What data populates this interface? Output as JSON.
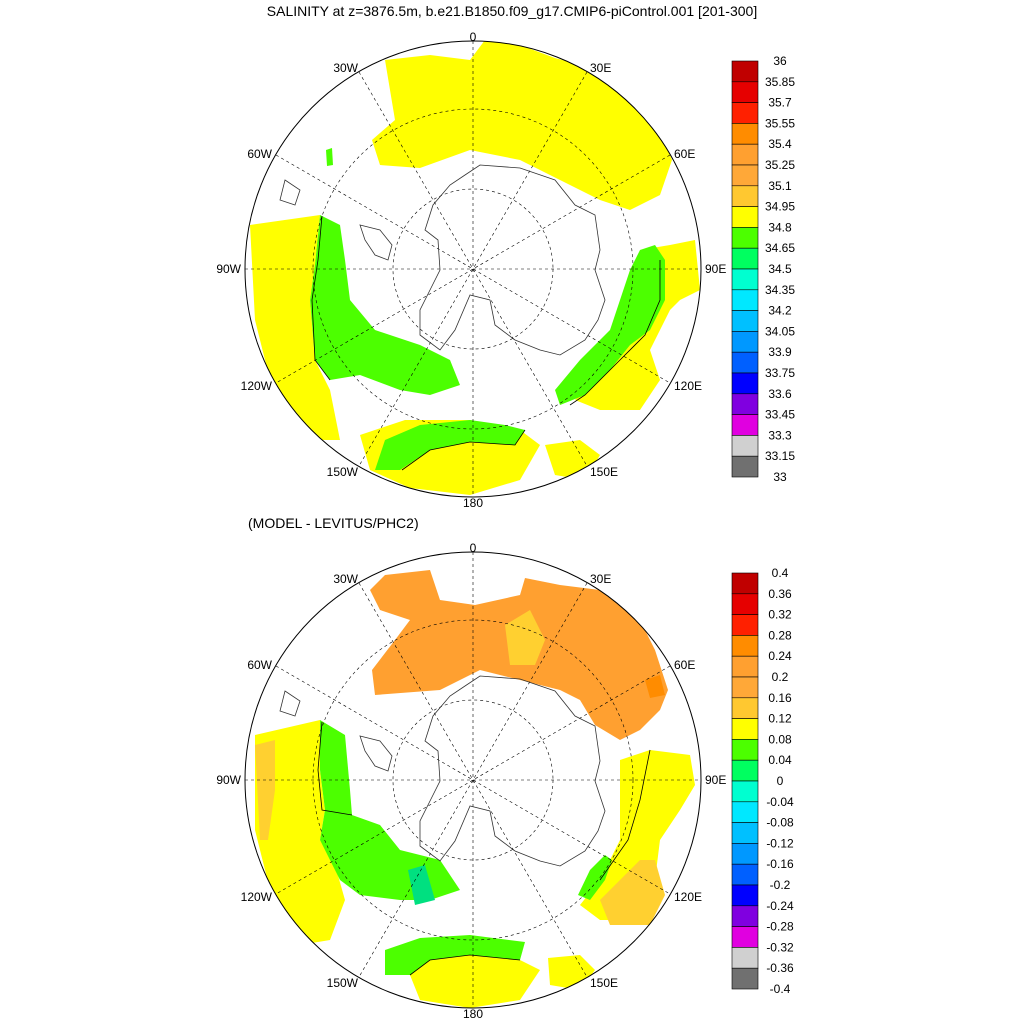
{
  "title": "SALINITY at z=3876.5m, b.e21.B1850.f09_g17.CMIP6-piControl.001 [201-300]",
  "subtitle": "(MODEL - LEVITUS/PHC2)",
  "map_labels": {
    "top": "0",
    "bottom": "180",
    "w30": "30W",
    "e30": "30E",
    "w60": "60W",
    "e60": "60E",
    "w90": "90W",
    "e90": "90E",
    "w120": "120W",
    "e120": "120E",
    "w150": "150W",
    "e150": "150E"
  },
  "colorbar1": {
    "labels": [
      "36",
      "35.85",
      "35.7",
      "35.55",
      "35.4",
      "35.25",
      "35.1",
      "34.95",
      "34.8",
      "34.65",
      "34.5",
      "34.35",
      "34.2",
      "34.05",
      "33.9",
      "33.75",
      "33.6",
      "33.45",
      "33.3",
      "33.15",
      "33"
    ],
    "colors": [
      "#c00000",
      "#e60000",
      "#ff2000",
      "#ff8c00",
      "#ffa030",
      "#ffa838",
      "#ffc830",
      "#ffff00",
      "#4cff00",
      "#00ff60",
      "#00ffd0",
      "#00e8ff",
      "#00c0ff",
      "#0098ff",
      "#0060ff",
      "#0000ff",
      "#8000e0",
      "#e000e0",
      "#d0d0d0",
      "#707070"
    ]
  },
  "colorbar2": {
    "labels": [
      "0.4",
      "0.36",
      "0.32",
      "0.28",
      "0.24",
      "0.2",
      "0.16",
      "0.12",
      "0.08",
      "0.04",
      "0",
      "-0.04",
      "-0.08",
      "-0.12",
      "-0.16",
      "-0.2",
      "-0.24",
      "-0.28",
      "-0.32",
      "-0.36",
      "-0.4"
    ],
    "colors": [
      "#c00000",
      "#e60000",
      "#ff2000",
      "#ff8c00",
      "#ffa030",
      "#ffa838",
      "#ffc830",
      "#ffff00",
      "#4cff00",
      "#00ff60",
      "#00ffd0",
      "#00e8ff",
      "#00c0ff",
      "#0098ff",
      "#0060ff",
      "#0000ff",
      "#8000e0",
      "#e000e0",
      "#d0d0d0",
      "#707070"
    ]
  },
  "map_fill_colors": {
    "yellow": "#ffff00",
    "green": "#4cff00",
    "orange": "#ffa030",
    "gold": "#ffd030",
    "teal": "#00e080",
    "darkorange": "#ff8c00"
  }
}
